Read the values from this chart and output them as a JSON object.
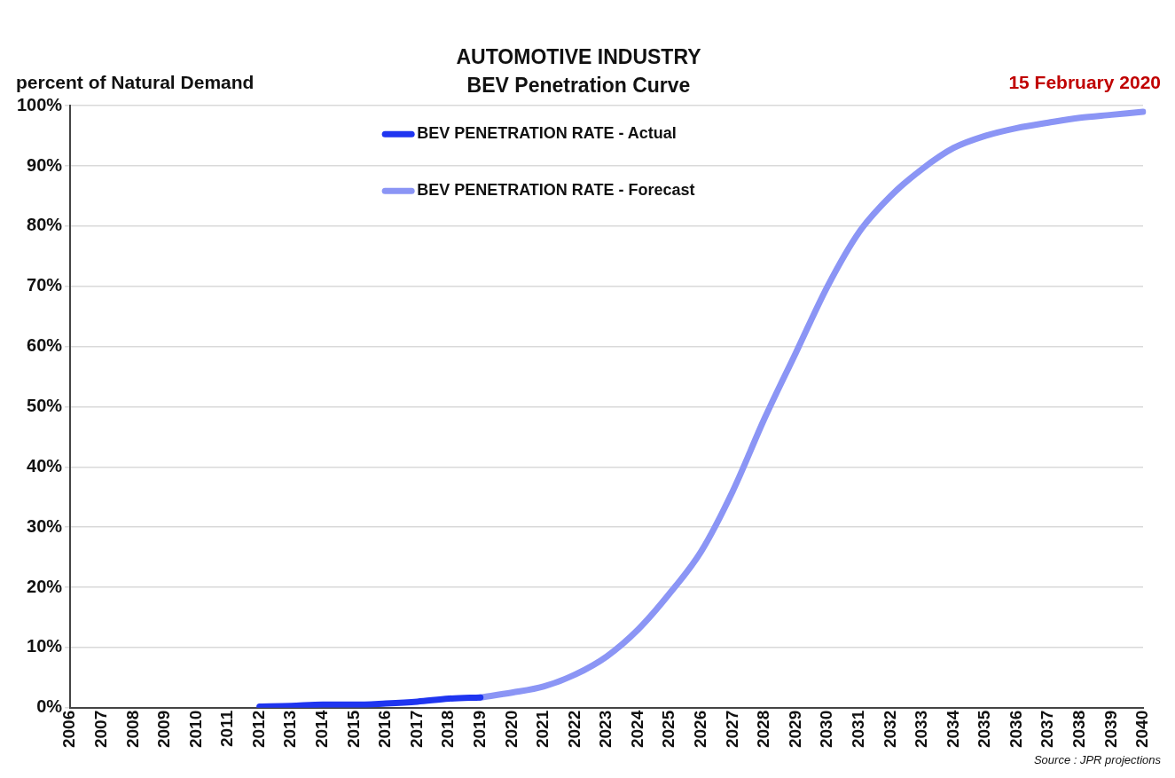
{
  "chart_data": {
    "type": "line",
    "title": "AUTOMOTIVE INDUSTRY",
    "subtitle": "BEV Penetration Curve",
    "ylabel": "percent of Natural Demand",
    "annotations": [
      "15 February 2020",
      "Source : JPR projections"
    ],
    "categories": [
      "2006",
      "2007",
      "2008",
      "2009",
      "2010",
      "2011",
      "2012",
      "2013",
      "2014",
      "2015",
      "2016",
      "2017",
      "2018",
      "2019",
      "2020",
      "2021",
      "2022",
      "2023",
      "2024",
      "2025",
      "2026",
      "2027",
      "2028",
      "2029",
      "2030",
      "2031",
      "2032",
      "2033",
      "2034",
      "2035",
      "2036",
      "2037",
      "2038",
      "2039",
      "2040"
    ],
    "series": [
      {
        "name": "BEV PENETRATION RATE - Actual",
        "color": "#1f35f0",
        "values": [
          null,
          null,
          null,
          null,
          null,
          null,
          0.2,
          0.3,
          0.5,
          0.5,
          0.7,
          1.0,
          1.5,
          1.7,
          null,
          null,
          null,
          null,
          null,
          null,
          null,
          null,
          null,
          null,
          null,
          null,
          null,
          null,
          null,
          null,
          null,
          null,
          null,
          null,
          null
        ]
      },
      {
        "name": "BEV PENETRATION RATE - Forecast",
        "color": "#8b95f5",
        "values": [
          null,
          null,
          null,
          null,
          null,
          null,
          null,
          null,
          null,
          null,
          null,
          null,
          null,
          1.7,
          2.5,
          3.5,
          5.5,
          8.5,
          13,
          19,
          26,
          36,
          48,
          59,
          70,
          79,
          85,
          89.5,
          93,
          95,
          96.3,
          97.2,
          98,
          98.5,
          99
        ]
      }
    ],
    "ylim": [
      0,
      100
    ],
    "yticks": [
      {
        "value": 0,
        "label": "0%"
      },
      {
        "value": 10,
        "label": "10%"
      },
      {
        "value": 20,
        "label": "20%"
      },
      {
        "value": 30,
        "label": "30%"
      },
      {
        "value": 40,
        "label": "40%"
      },
      {
        "value": 50,
        "label": "50%"
      },
      {
        "value": 60,
        "label": "60%"
      },
      {
        "value": 70,
        "label": "70%"
      },
      {
        "value": 80,
        "label": "80%"
      },
      {
        "value": 90,
        "label": "90%"
      },
      {
        "value": 100,
        "label": "100%"
      }
    ],
    "grid": "y",
    "legend": "top left",
    "marker": "none",
    "line_style": "solid"
  }
}
